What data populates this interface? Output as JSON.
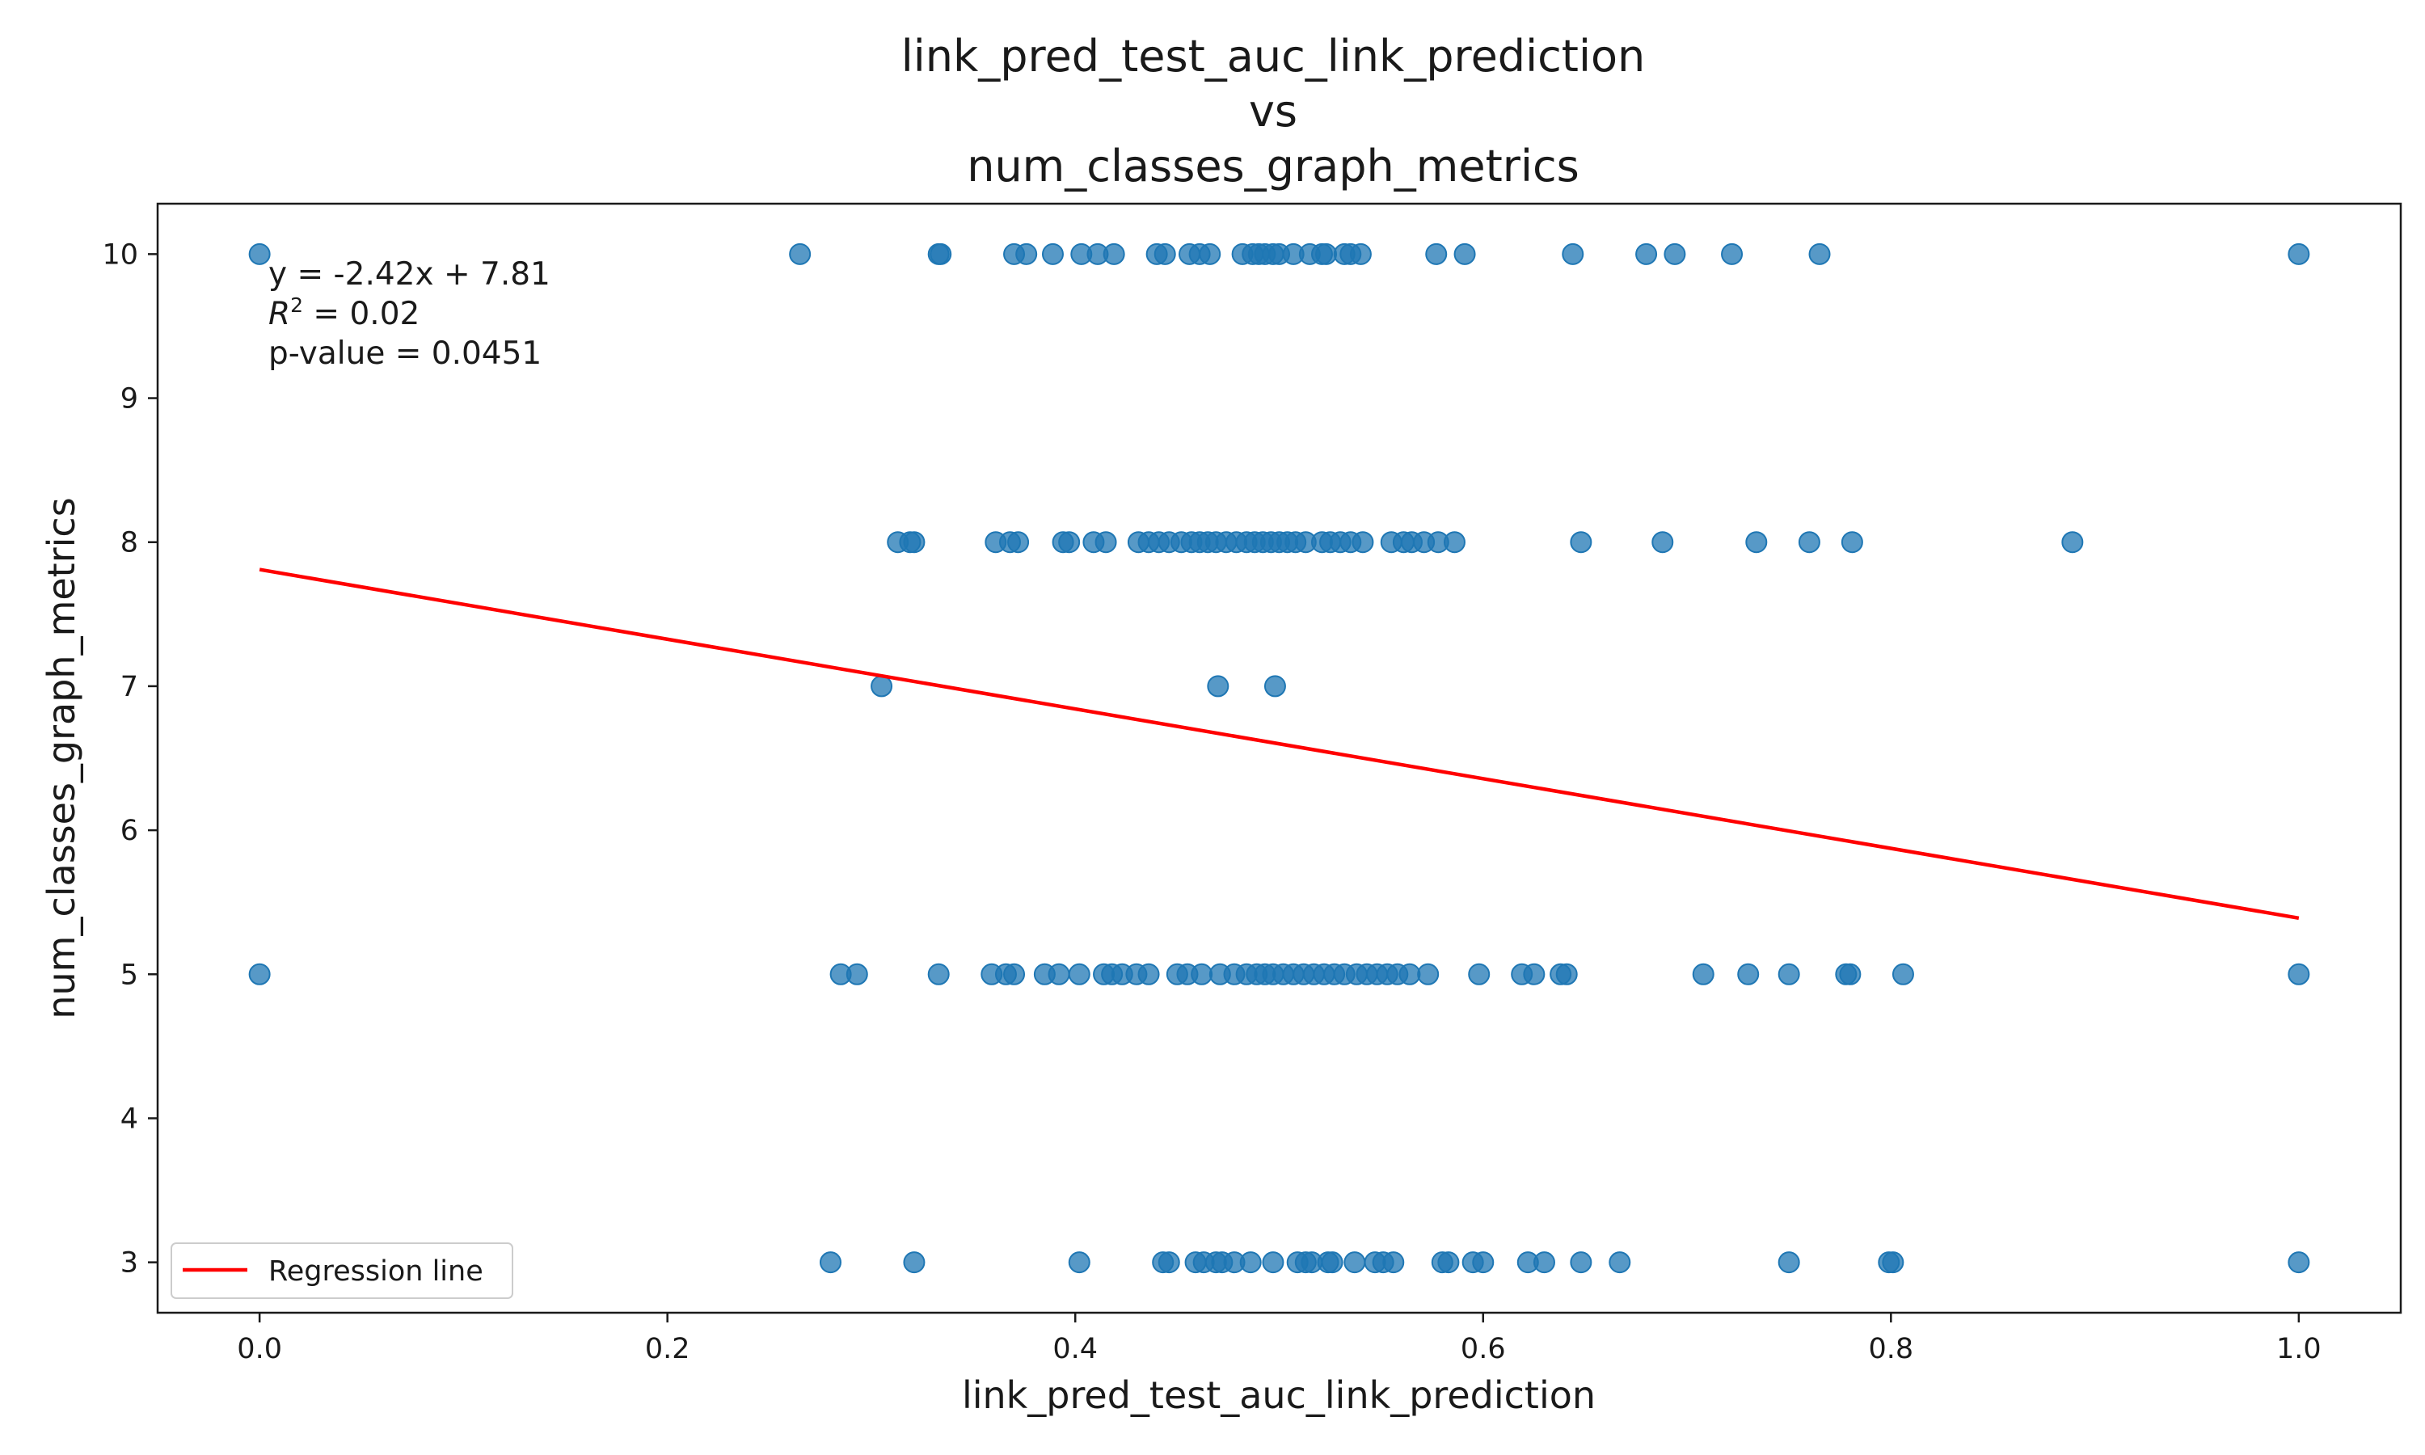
{
  "chart_data": {
    "type": "scatter",
    "title_lines": [
      "link_pred_test_auc_link_prediction",
      "vs",
      "num_classes_graph_metrics"
    ],
    "xlabel": "link_pred_test_auc_link_prediction",
    "ylabel": "num_classes_graph_metrics",
    "xlim": [
      -0.05,
      1.05
    ],
    "ylim": [
      2.65,
      10.35
    ],
    "xticks": [
      0.0,
      0.2,
      0.4,
      0.6,
      0.8,
      1.0
    ],
    "xtick_labels": [
      "0.0",
      "0.2",
      "0.4",
      "0.6",
      "0.8",
      "1.0"
    ],
    "yticks": [
      3,
      4,
      5,
      6,
      7,
      8,
      9,
      10
    ],
    "ytick_labels": [
      "3",
      "4",
      "5",
      "6",
      "7",
      "8",
      "9",
      "10"
    ],
    "grid": false,
    "point_color": "#1f77b4",
    "line_color": "#ff0000",
    "points": [
      [
        0.0,
        10
      ],
      [
        0.265,
        10
      ],
      [
        0.333,
        10
      ],
      [
        0.334,
        10
      ],
      [
        0.37,
        10
      ],
      [
        0.376,
        10
      ],
      [
        0.389,
        10
      ],
      [
        0.403,
        10
      ],
      [
        0.411,
        10
      ],
      [
        0.419,
        10
      ],
      [
        0.44,
        10
      ],
      [
        0.444,
        10
      ],
      [
        0.456,
        10
      ],
      [
        0.461,
        10
      ],
      [
        0.466,
        10
      ],
      [
        0.482,
        10
      ],
      [
        0.487,
        10
      ],
      [
        0.49,
        10
      ],
      [
        0.493,
        10
      ],
      [
        0.497,
        10
      ],
      [
        0.5,
        10
      ],
      [
        0.507,
        10
      ],
      [
        0.515,
        10
      ],
      [
        0.521,
        10
      ],
      [
        0.523,
        10
      ],
      [
        0.532,
        10
      ],
      [
        0.535,
        10
      ],
      [
        0.54,
        10
      ],
      [
        0.577,
        10
      ],
      [
        0.591,
        10
      ],
      [
        0.644,
        10
      ],
      [
        0.68,
        10
      ],
      [
        0.694,
        10
      ],
      [
        0.722,
        10
      ],
      [
        0.765,
        10
      ],
      [
        1.0,
        10
      ],
      [
        0.313,
        8
      ],
      [
        0.319,
        8
      ],
      [
        0.321,
        8
      ],
      [
        0.361,
        8
      ],
      [
        0.368,
        8
      ],
      [
        0.372,
        8
      ],
      [
        0.394,
        8
      ],
      [
        0.397,
        8
      ],
      [
        0.409,
        8
      ],
      [
        0.415,
        8
      ],
      [
        0.431,
        8
      ],
      [
        0.436,
        8
      ],
      [
        0.441,
        8
      ],
      [
        0.446,
        8
      ],
      [
        0.452,
        8
      ],
      [
        0.457,
        8
      ],
      [
        0.461,
        8
      ],
      [
        0.465,
        8
      ],
      [
        0.469,
        8
      ],
      [
        0.474,
        8
      ],
      [
        0.479,
        8
      ],
      [
        0.484,
        8
      ],
      [
        0.488,
        8
      ],
      [
        0.492,
        8
      ],
      [
        0.496,
        8
      ],
      [
        0.5,
        8
      ],
      [
        0.504,
        8
      ],
      [
        0.508,
        8
      ],
      [
        0.513,
        8
      ],
      [
        0.521,
        8
      ],
      [
        0.525,
        8
      ],
      [
        0.53,
        8
      ],
      [
        0.535,
        8
      ],
      [
        0.541,
        8
      ],
      [
        0.555,
        8
      ],
      [
        0.561,
        8
      ],
      [
        0.565,
        8
      ],
      [
        0.571,
        8
      ],
      [
        0.578,
        8
      ],
      [
        0.586,
        8
      ],
      [
        0.648,
        8
      ],
      [
        0.688,
        8
      ],
      [
        0.734,
        8
      ],
      [
        0.76,
        8
      ],
      [
        0.781,
        8
      ],
      [
        0.889,
        8
      ],
      [
        0.305,
        7
      ],
      [
        0.47,
        7
      ],
      [
        0.498,
        7
      ],
      [
        0.0,
        5
      ],
      [
        0.285,
        5
      ],
      [
        0.293,
        5
      ],
      [
        0.333,
        5
      ],
      [
        0.359,
        5
      ],
      [
        0.366,
        5
      ],
      [
        0.37,
        5
      ],
      [
        0.385,
        5
      ],
      [
        0.392,
        5
      ],
      [
        0.402,
        5
      ],
      [
        0.414,
        5
      ],
      [
        0.418,
        5
      ],
      [
        0.423,
        5
      ],
      [
        0.43,
        5
      ],
      [
        0.436,
        5
      ],
      [
        0.45,
        5
      ],
      [
        0.455,
        5
      ],
      [
        0.462,
        5
      ],
      [
        0.471,
        5
      ],
      [
        0.478,
        5
      ],
      [
        0.484,
        5
      ],
      [
        0.489,
        5
      ],
      [
        0.493,
        5
      ],
      [
        0.497,
        5
      ],
      [
        0.502,
        5
      ],
      [
        0.507,
        5
      ],
      [
        0.512,
        5
      ],
      [
        0.517,
        5
      ],
      [
        0.522,
        5
      ],
      [
        0.527,
        5
      ],
      [
        0.532,
        5
      ],
      [
        0.538,
        5
      ],
      [
        0.543,
        5
      ],
      [
        0.548,
        5
      ],
      [
        0.553,
        5
      ],
      [
        0.558,
        5
      ],
      [
        0.564,
        5
      ],
      [
        0.573,
        5
      ],
      [
        0.598,
        5
      ],
      [
        0.619,
        5
      ],
      [
        0.625,
        5
      ],
      [
        0.638,
        5
      ],
      [
        0.641,
        5
      ],
      [
        0.708,
        5
      ],
      [
        0.73,
        5
      ],
      [
        0.75,
        5
      ],
      [
        0.778,
        5
      ],
      [
        0.78,
        5
      ],
      [
        0.806,
        5
      ],
      [
        1.0,
        5
      ],
      [
        0.28,
        3
      ],
      [
        0.321,
        3
      ],
      [
        0.402,
        3
      ],
      [
        0.443,
        3
      ],
      [
        0.446,
        3
      ],
      [
        0.459,
        3
      ],
      [
        0.463,
        3
      ],
      [
        0.469,
        3
      ],
      [
        0.472,
        3
      ],
      [
        0.478,
        3
      ],
      [
        0.486,
        3
      ],
      [
        0.497,
        3
      ],
      [
        0.509,
        3
      ],
      [
        0.513,
        3
      ],
      [
        0.516,
        3
      ],
      [
        0.524,
        3
      ],
      [
        0.526,
        3
      ],
      [
        0.537,
        3
      ],
      [
        0.547,
        3
      ],
      [
        0.551,
        3
      ],
      [
        0.556,
        3
      ],
      [
        0.58,
        3
      ],
      [
        0.583,
        3
      ],
      [
        0.595,
        3
      ],
      [
        0.6,
        3
      ],
      [
        0.622,
        3
      ],
      [
        0.63,
        3
      ],
      [
        0.648,
        3
      ],
      [
        0.667,
        3
      ],
      [
        0.75,
        3
      ],
      [
        0.799,
        3
      ],
      [
        0.801,
        3
      ],
      [
        1.0,
        3
      ]
    ],
    "regression": {
      "slope": -2.42,
      "intercept": 7.81,
      "x_range": [
        0.0,
        1.0
      ]
    },
    "annotation": {
      "equation": "y = -2.42x + 7.81",
      "r2_symbol": "R",
      "r2_exponent": "2",
      "r2_rest": " = 0.02",
      "pvalue": "p-value = 0.0451"
    },
    "legend": {
      "label": "Regression line",
      "position": "lower-left"
    }
  }
}
